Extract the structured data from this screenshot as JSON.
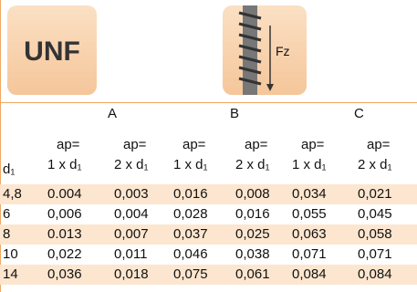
{
  "header": {
    "title": "UNF",
    "icon_label": "Fz"
  },
  "table": {
    "groups": [
      "A",
      "B",
      "C"
    ],
    "row_label": "d₁",
    "columns": [
      [
        "ap=",
        "1 x d₁"
      ],
      [
        "ap=",
        "2 x d₁"
      ],
      [
        "ap=",
        "1 x d₁"
      ],
      [
        "ap=",
        "2 x d₁"
      ],
      [
        "ap=",
        "1 x d₁"
      ],
      [
        "ap=",
        "2 x d₁"
      ]
    ],
    "rows": [
      [
        "4,8",
        "0.004",
        "0,003",
        "0,016",
        "0,008",
        "0,034",
        "0,021"
      ],
      [
        "6",
        "0,006",
        "0,004",
        "0,028",
        "0,016",
        "0,055",
        "0,045"
      ],
      [
        "8",
        "0.013",
        "0,007",
        "0,037",
        "0,025",
        "0,063",
        "0,058"
      ],
      [
        "10",
        "0,022",
        "0,011",
        "0,046",
        "0,038",
        "0,071",
        "0,071"
      ],
      [
        "14",
        "0,036",
        "0,018",
        "0,075",
        "0,061",
        "0,084",
        "0,084"
      ]
    ]
  }
}
